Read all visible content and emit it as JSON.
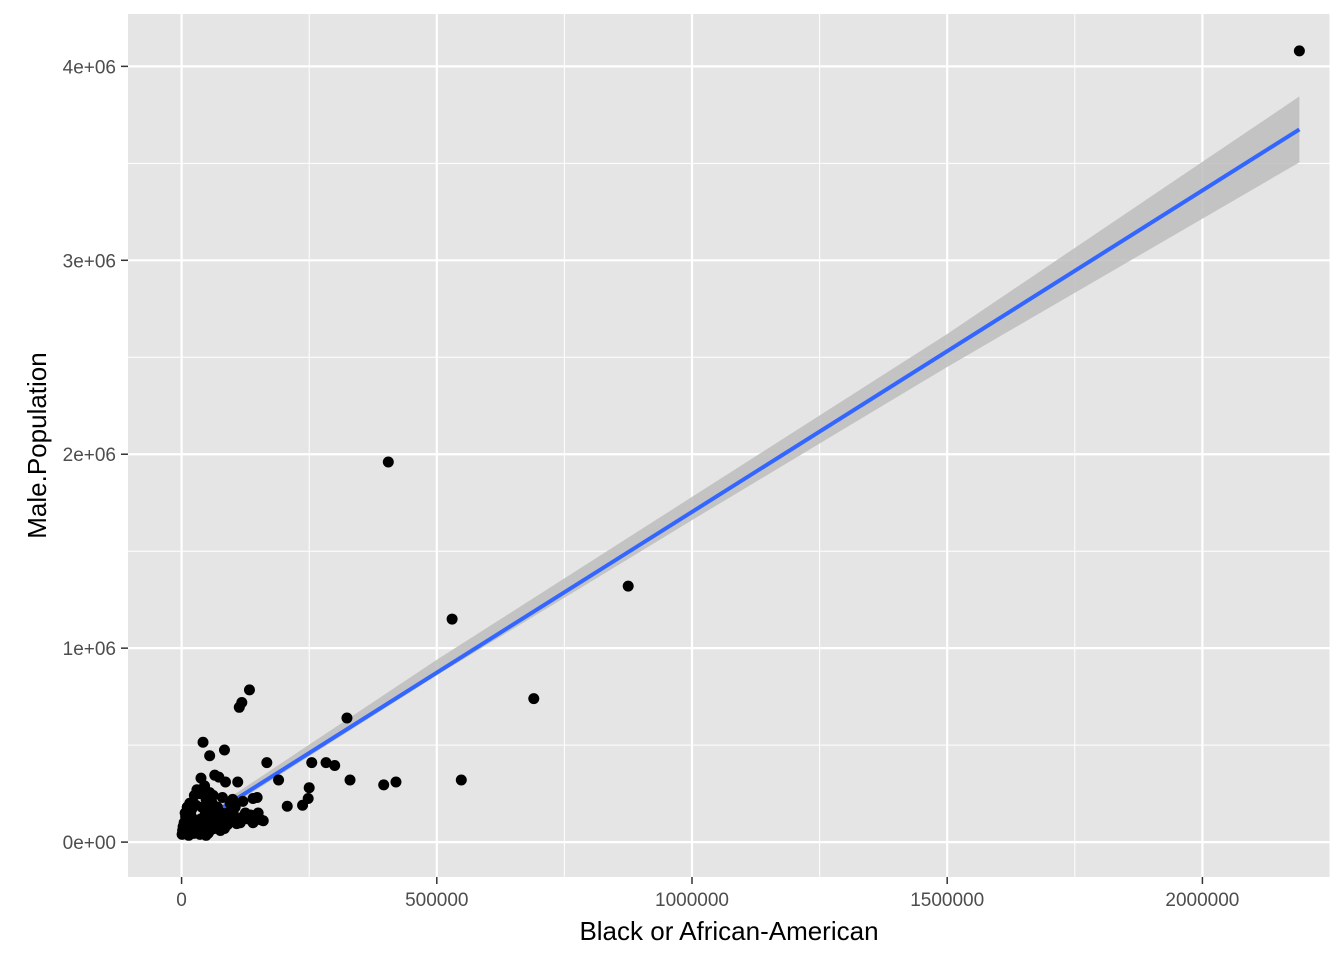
{
  "chart_data": {
    "type": "scatter",
    "xlabel": "Black or African-American",
    "ylabel": "Male.Population",
    "xlim": [
      -105000,
      2250000
    ],
    "ylim": [
      -180000,
      4270000
    ],
    "x_ticks": [
      0,
      500000,
      1000000,
      1500000,
      2000000
    ],
    "x_tick_labels": [
      "0",
      "500000",
      "1000000",
      "1500000",
      "2000000"
    ],
    "y_ticks": [
      0,
      1000000,
      2000000,
      3000000,
      4000000
    ],
    "y_tick_labels": [
      "0e+00",
      "1e+06",
      "2e+06",
      "3e+06",
      "4e+06"
    ],
    "grid": true,
    "legend": "none",
    "colors": {
      "panel": "#e5e5e5",
      "grid": "#ffffff",
      "points": "#000000",
      "trend_line": "#3366ff",
      "confidence_band": "#bdbdbd"
    },
    "trend_line": {
      "method": "linear",
      "x": [
        0,
        2190000
      ],
      "y": [
        45000,
        3675000
      ]
    },
    "confidence_band": {
      "x": [
        0,
        500000,
        1000000,
        1500000,
        2190000
      ],
      "lower": [
        25000,
        860000,
        1660000,
        2450000,
        3505000
      ],
      "upper": [
        65000,
        940000,
        1780000,
        2620000,
        3845000
      ]
    },
    "points": [
      [
        2190000,
        4080000
      ],
      [
        405000,
        1960000
      ],
      [
        875000,
        1320000
      ],
      [
        530000,
        1150000
      ],
      [
        690000,
        740000
      ],
      [
        133000,
        785000
      ],
      [
        118000,
        720000
      ],
      [
        113000,
        695000
      ],
      [
        324000,
        640000
      ],
      [
        42000,
        515000
      ],
      [
        84000,
        475000
      ],
      [
        55000,
        445000
      ],
      [
        167000,
        410000
      ],
      [
        255000,
        410000
      ],
      [
        283000,
        410000
      ],
      [
        300000,
        395000
      ],
      [
        548000,
        320000
      ],
      [
        420000,
        310000
      ],
      [
        396000,
        295000
      ],
      [
        330000,
        320000
      ],
      [
        190000,
        320000
      ],
      [
        110000,
        310000
      ],
      [
        73000,
        335000
      ],
      [
        65000,
        345000
      ],
      [
        38000,
        330000
      ],
      [
        86000,
        310000
      ],
      [
        250000,
        280000
      ],
      [
        248000,
        225000
      ],
      [
        237000,
        190000
      ],
      [
        207000,
        185000
      ],
      [
        148000,
        230000
      ],
      [
        140000,
        225000
      ],
      [
        120000,
        210000
      ],
      [
        100000,
        220000
      ],
      [
        30000,
        270000
      ],
      [
        35000,
        250000
      ],
      [
        45000,
        290000
      ],
      [
        25000,
        240000
      ],
      [
        55000,
        255000
      ],
      [
        62000,
        240000
      ],
      [
        80000,
        230000
      ],
      [
        95000,
        200000
      ],
      [
        105000,
        180000
      ],
      [
        125000,
        150000
      ],
      [
        150000,
        150000
      ],
      [
        160000,
        110000
      ],
      [
        140000,
        100000
      ],
      [
        120000,
        130000
      ],
      [
        90000,
        150000
      ],
      [
        70000,
        180000
      ],
      [
        60000,
        200000
      ],
      [
        48000,
        220000
      ],
      [
        40000,
        180000
      ],
      [
        28000,
        190000
      ],
      [
        20000,
        170000
      ],
      [
        12000,
        160000
      ],
      [
        8000,
        130000
      ],
      [
        5000,
        100000
      ],
      [
        3000,
        80000
      ],
      [
        2000,
        60000
      ],
      [
        1000,
        40000
      ],
      [
        4000,
        45000
      ],
      [
        6000,
        70000
      ],
      [
        10000,
        110000
      ],
      [
        15000,
        90000
      ],
      [
        18000,
        140000
      ],
      [
        22000,
        120000
      ],
      [
        26000,
        100000
      ],
      [
        30000,
        80000
      ],
      [
        34000,
        60000
      ],
      [
        38000,
        120000
      ],
      [
        42000,
        100000
      ],
      [
        46000,
        140000
      ],
      [
        50000,
        170000
      ],
      [
        54000,
        110000
      ],
      [
        58000,
        90000
      ],
      [
        62000,
        130000
      ],
      [
        66000,
        160000
      ],
      [
        70000,
        120000
      ],
      [
        74000,
        100000
      ],
      [
        78000,
        150000
      ],
      [
        82000,
        130000
      ],
      [
        86000,
        110000
      ],
      [
        90000,
        90000
      ],
      [
        96000,
        120000
      ],
      [
        102000,
        140000
      ],
      [
        110000,
        120000
      ],
      [
        115000,
        100000
      ],
      [
        130000,
        120000
      ],
      [
        135000,
        140000
      ],
      [
        145000,
        125000
      ],
      [
        155000,
        115000
      ],
      [
        20000,
        60000
      ],
      [
        24000,
        45000
      ],
      [
        32000,
        50000
      ],
      [
        36000,
        40000
      ],
      [
        44000,
        55000
      ],
      [
        52000,
        45000
      ],
      [
        56000,
        60000
      ],
      [
        64000,
        70000
      ],
      [
        72000,
        80000
      ],
      [
        76000,
        60000
      ],
      [
        14000,
        35000
      ],
      [
        9000,
        50000
      ],
      [
        16000,
        200000
      ],
      [
        11000,
        180000
      ],
      [
        7000,
        150000
      ],
      [
        48000,
        35000
      ],
      [
        68000,
        90000
      ],
      [
        84000,
        70000
      ],
      [
        92000,
        100000
      ],
      [
        108000,
        95000
      ]
    ]
  }
}
